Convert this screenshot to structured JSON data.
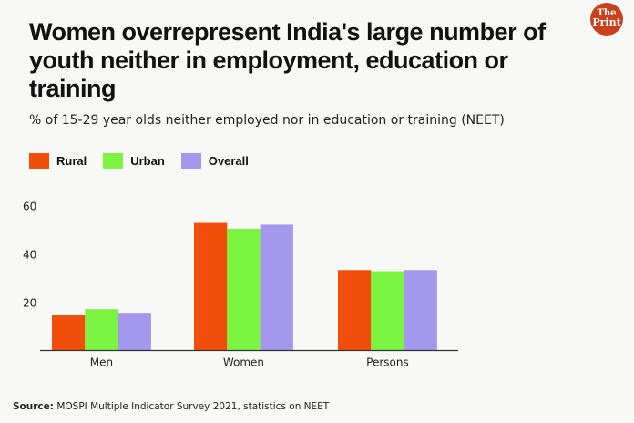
{
  "chart_data": {
    "type": "bar",
    "title": "Women overrepresent India's large number of youth neither in employment, education or training",
    "subtitle": "% of 15-29 year olds neither employed nor in education or training (NEET)",
    "categories": [
      "Men",
      "Women",
      "Persons"
    ],
    "series": [
      {
        "name": "Rural",
        "color": "#f24e0b",
        "values": [
          14.7,
          52.8,
          33.3
        ]
      },
      {
        "name": "Urban",
        "color": "#7cf542",
        "values": [
          17.1,
          50.4,
          32.8
        ]
      },
      {
        "name": "Overall",
        "color": "#a398ee",
        "values": [
          15.6,
          52.1,
          33.3
        ]
      }
    ],
    "yticks": [
      20,
      40,
      60
    ],
    "ylim": [
      0,
      60
    ],
    "xlabel": "",
    "ylabel": "",
    "grid": false,
    "legend": "top-left",
    "source_label": "Source:",
    "source": "MOSPI Multiple Indicator Survey 2021, statistics on NEET"
  },
  "logo": {
    "line1": "The",
    "line2": "Print"
  }
}
